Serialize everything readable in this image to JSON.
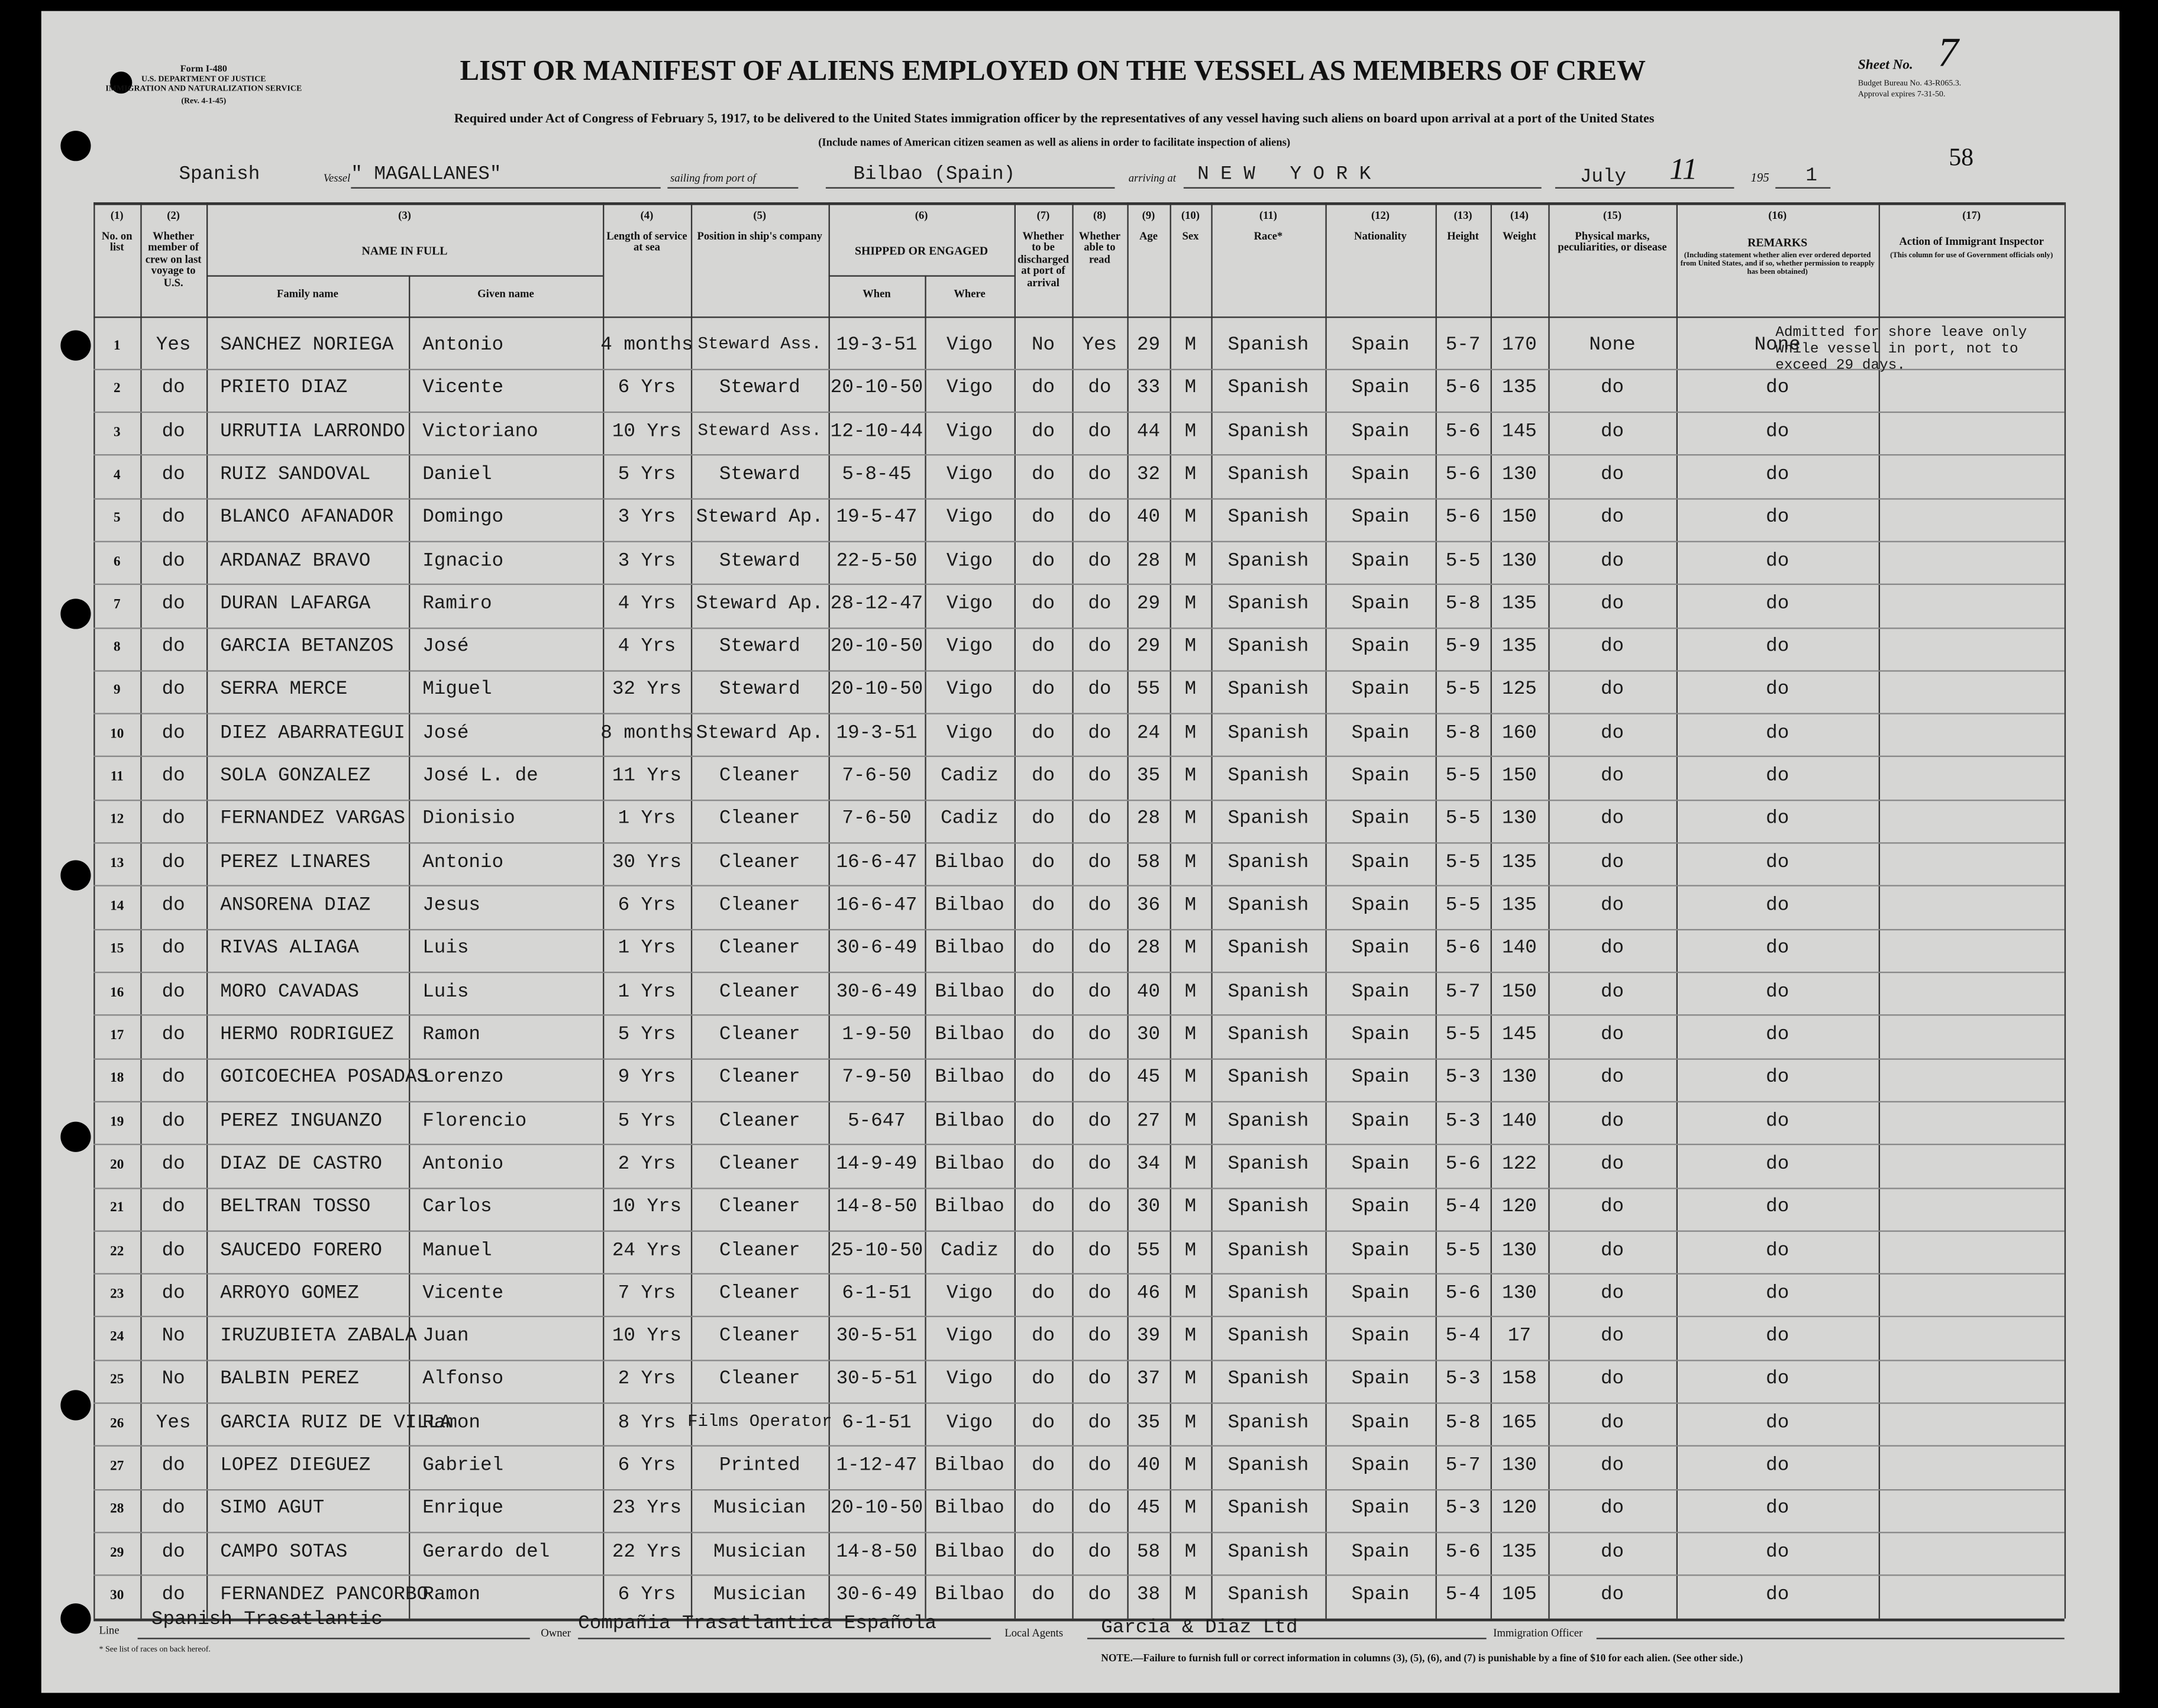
{
  "header": {
    "form_info": [
      "Form I-480",
      "U.S. DEPARTMENT OF JUSTICE",
      "IMMIGRATION AND NATURALIZATION SERVICE",
      "(Rev. 4-1-45)"
    ],
    "title": "LIST OR MANIFEST OF ALIENS EMPLOYED ON THE VESSEL AS MEMBERS OF CREW",
    "sheet_label": "Sheet No.",
    "sheet_number": "7",
    "budget": [
      "Budget Bureau No. 43-R065.3.",
      "Approval expires 7-31-50."
    ],
    "subtitle": "Required under Act of Congress of February 5, 1917, to be delivered to the United States immigration officer by the representatives of any vessel having such aliens on board upon arrival at a port of the United States",
    "note": "(Include names of American citizen seamen as well as aliens in order to facilitate inspection of aliens)",
    "page_number": "58"
  },
  "voyage": {
    "nationality": "Spanish",
    "vessel_label": "Vessel",
    "vessel": "\" MAGALLANES\"",
    "sailing_label": "sailing from port of",
    "port": "Bilbao (Spain)",
    "arriving_label": "arriving at",
    "arrival": "N E W   Y O R K",
    "month": "July",
    "day": "11",
    "year": "195",
    "year_digit": "1"
  },
  "table": {
    "columns": [
      {
        "num": "(1)",
        "label": "No. on list"
      },
      {
        "num": "(2)",
        "label": "Whether member of crew on last voyage to U.S."
      },
      {
        "num": "(3)",
        "label": "NAME IN FULL",
        "subs": [
          "Family name",
          "Given name"
        ]
      },
      {
        "num": "(4)",
        "label": "Length of service at sea"
      },
      {
        "num": "(5)",
        "label": "Position in ship's company"
      },
      {
        "num": "(6)",
        "label": "SHIPPED OR ENGAGED",
        "subs": [
          "When",
          "Where"
        ]
      },
      {
        "num": "(7)",
        "label": "Whether to be discharged at port of arrival"
      },
      {
        "num": "(8)",
        "label": "Whether able to read"
      },
      {
        "num": "(9)",
        "label": "Age"
      },
      {
        "num": "(10)",
        "label": "Sex"
      },
      {
        "num": "(11)",
        "label": "Race*"
      },
      {
        "num": "(12)",
        "label": "Nationality"
      },
      {
        "num": "(13)",
        "label": "Height"
      },
      {
        "num": "(14)",
        "label": "Weight"
      },
      {
        "num": "(15)",
        "label": "Physical marks, peculiarities, or disease"
      },
      {
        "num": "(16)",
        "label": "REMARKS",
        "note": "(Including statement whether alien ever ordered deported from United States, and if so, whether permission to reapply has been obtained)"
      },
      {
        "num": "(17)",
        "label": "Action of Immigrant Inspector",
        "note": "(This column for use of Government officials only)"
      }
    ],
    "rows": [
      [
        "1",
        "Yes",
        "SANCHEZ NORIEGA",
        "Antonio",
        "4 months",
        "Steward Ass.",
        "19-3-51",
        "Vigo",
        "No",
        "Yes",
        "29",
        "M",
        "Spanish",
        "Spain",
        "5-7",
        "170",
        "None",
        "None"
      ],
      [
        "2",
        "do",
        "PRIETO DIAZ",
        "Vicente",
        "6 Yrs",
        "Steward",
        "20-10-50",
        "Vigo",
        "do",
        "do",
        "33",
        "M",
        "Spanish",
        "Spain",
        "5-6",
        "135",
        "do",
        "do"
      ],
      [
        "3",
        "do",
        "URRUTIA LARRONDO",
        "Victoriano",
        "10 Yrs",
        "Steward Ass.",
        "12-10-44",
        "Vigo",
        "do",
        "do",
        "44",
        "M",
        "Spanish",
        "Spain",
        "5-6",
        "145",
        "do",
        "do"
      ],
      [
        "4",
        "do",
        "RUIZ SANDOVAL",
        "Daniel",
        "5 Yrs",
        "Steward",
        "5-8-45",
        "Vigo",
        "do",
        "do",
        "32",
        "M",
        "Spanish",
        "Spain",
        "5-6",
        "130",
        "do",
        "do"
      ],
      [
        "5",
        "do",
        "BLANCO AFANADOR",
        "Domingo",
        "3 Yrs",
        "Steward Ap.",
        "19-5-47",
        "Vigo",
        "do",
        "do",
        "40",
        "M",
        "Spanish",
        "Spain",
        "5-6",
        "150",
        "do",
        "do"
      ],
      [
        "6",
        "do",
        "ARDANAZ BRAVO",
        "Ignacio",
        "3 Yrs",
        "Steward",
        "22-5-50",
        "Vigo",
        "do",
        "do",
        "28",
        "M",
        "Spanish",
        "Spain",
        "5-5",
        "130",
        "do",
        "do"
      ],
      [
        "7",
        "do",
        "DURAN LAFARGA",
        "Ramiro",
        "4 Yrs",
        "Steward Ap.",
        "28-12-47",
        "Vigo",
        "do",
        "do",
        "29",
        "M",
        "Spanish",
        "Spain",
        "5-8",
        "135",
        "do",
        "do"
      ],
      [
        "8",
        "do",
        "GARCIA BETANZOS",
        "José",
        "4 Yrs",
        "Steward",
        "20-10-50",
        "Vigo",
        "do",
        "do",
        "29",
        "M",
        "Spanish",
        "Spain",
        "5-9",
        "135",
        "do",
        "do"
      ],
      [
        "9",
        "do",
        "SERRA MERCE",
        "Miguel",
        "32 Yrs",
        "Steward",
        "20-10-50",
        "Vigo",
        "do",
        "do",
        "55",
        "M",
        "Spanish",
        "Spain",
        "5-5",
        "125",
        "do",
        "do"
      ],
      [
        "10",
        "do",
        "DIEZ ABARRATEGUI",
        "José",
        "8 months",
        "Steward Ap.",
        "19-3-51",
        "Vigo",
        "do",
        "do",
        "24",
        "M",
        "Spanish",
        "Spain",
        "5-8",
        "160",
        "do",
        "do"
      ],
      [
        "11",
        "do",
        "SOLA GONZALEZ",
        "José L. de",
        "11 Yrs",
        "Cleaner",
        "7-6-50",
        "Cadiz",
        "do",
        "do",
        "35",
        "M",
        "Spanish",
        "Spain",
        "5-5",
        "150",
        "do",
        "do"
      ],
      [
        "12",
        "do",
        "FERNANDEZ VARGAS",
        "Dionisio",
        "1 Yrs",
        "Cleaner",
        "7-6-50",
        "Cadiz",
        "do",
        "do",
        "28",
        "M",
        "Spanish",
        "Spain",
        "5-5",
        "130",
        "do",
        "do"
      ],
      [
        "13",
        "do",
        "PEREZ LINARES",
        "Antonio",
        "30 Yrs",
        "Cleaner",
        "16-6-47",
        "Bilbao",
        "do",
        "do",
        "58",
        "M",
        "Spanish",
        "Spain",
        "5-5",
        "135",
        "do",
        "do"
      ],
      [
        "14",
        "do",
        "ANSORENA DIAZ",
        "Jesus",
        "6 Yrs",
        "Cleaner",
        "16-6-47",
        "Bilbao",
        "do",
        "do",
        "36",
        "M",
        "Spanish",
        "Spain",
        "5-5",
        "135",
        "do",
        "do"
      ],
      [
        "15",
        "do",
        "RIVAS ALIAGA",
        "Luis",
        "1 Yrs",
        "Cleaner",
        "30-6-49",
        "Bilbao",
        "do",
        "do",
        "28",
        "M",
        "Spanish",
        "Spain",
        "5-6",
        "140",
        "do",
        "do"
      ],
      [
        "16",
        "do",
        "MORO CAVADAS",
        "Luis",
        "1 Yrs",
        "Cleaner",
        "30-6-49",
        "Bilbao",
        "do",
        "do",
        "40",
        "M",
        "Spanish",
        "Spain",
        "5-7",
        "150",
        "do",
        "do"
      ],
      [
        "17",
        "do",
        "HERMO RODRIGUEZ",
        "Ramon",
        "5 Yrs",
        "Cleaner",
        "1-9-50",
        "Bilbao",
        "do",
        "do",
        "30",
        "M",
        "Spanish",
        "Spain",
        "5-5",
        "145",
        "do",
        "do"
      ],
      [
        "18",
        "do",
        "GOICOECHEA POSADAS",
        "Lorenzo",
        "9 Yrs",
        "Cleaner",
        "7-9-50",
        "Bilbao",
        "do",
        "do",
        "45",
        "M",
        "Spanish",
        "Spain",
        "5-3",
        "130",
        "do",
        "do"
      ],
      [
        "19",
        "do",
        "PEREZ INGUANZO",
        "Florencio",
        "5 Yrs",
        "Cleaner",
        "5-647",
        "Bilbao",
        "do",
        "do",
        "27",
        "M",
        "Spanish",
        "Spain",
        "5-3",
        "140",
        "do",
        "do"
      ],
      [
        "20",
        "do",
        "DIAZ DE CASTRO",
        "Antonio",
        "2 Yrs",
        "Cleaner",
        "14-9-49",
        "Bilbao",
        "do",
        "do",
        "34",
        "M",
        "Spanish",
        "Spain",
        "5-6",
        "122",
        "do",
        "do"
      ],
      [
        "21",
        "do",
        "BELTRAN TOSSO",
        "Carlos",
        "10 Yrs",
        "Cleaner",
        "14-8-50",
        "Bilbao",
        "do",
        "do",
        "30",
        "M",
        "Spanish",
        "Spain",
        "5-4",
        "120",
        "do",
        "do"
      ],
      [
        "22",
        "do",
        "SAUCEDO FORERO",
        "Manuel",
        "24 Yrs",
        "Cleaner",
        "25-10-50",
        "Cadiz",
        "do",
        "do",
        "55",
        "M",
        "Spanish",
        "Spain",
        "5-5",
        "130",
        "do",
        "do"
      ],
      [
        "23",
        "do",
        "ARROYO GOMEZ",
        "Vicente",
        "7 Yrs",
        "Cleaner",
        "6-1-51",
        "Vigo",
        "do",
        "do",
        "46",
        "M",
        "Spanish",
        "Spain",
        "5-6",
        "130",
        "do",
        "do"
      ],
      [
        "24",
        "No",
        "IRUZUBIETA ZABALA",
        "Juan",
        "10 Yrs",
        "Cleaner",
        "30-5-51",
        "Vigo",
        "do",
        "do",
        "39",
        "M",
        "Spanish",
        "Spain",
        "5-4",
        "17",
        "do",
        "do"
      ],
      [
        "25",
        "No",
        "BALBIN PEREZ",
        "Alfonso",
        "2 Yrs",
        "Cleaner",
        "30-5-51",
        "Vigo",
        "do",
        "do",
        "37",
        "M",
        "Spanish",
        "Spain",
        "5-3",
        "158",
        "do",
        "do"
      ],
      [
        "26",
        "Yes",
        "GARCIA RUIZ DE VILLA",
        "Ramon",
        "8 Yrs",
        "Films Operator",
        "6-1-51",
        "Vigo",
        "do",
        "do",
        "35",
        "M",
        "Spanish",
        "Spain",
        "5-8",
        "165",
        "do",
        "do"
      ],
      [
        "27",
        "do",
        "LOPEZ DIEGUEZ",
        "Gabriel",
        "6 Yrs",
        "Printed",
        "1-12-47",
        "Bilbao",
        "do",
        "do",
        "40",
        "M",
        "Spanish",
        "Spain",
        "5-7",
        "130",
        "do",
        "do"
      ],
      [
        "28",
        "do",
        "SIMO AGUT",
        "Enrique",
        "23 Yrs",
        "Musician",
        "20-10-50",
        "Bilbao",
        "do",
        "do",
        "45",
        "M",
        "Spanish",
        "Spain",
        "5-3",
        "120",
        "do",
        "do"
      ],
      [
        "29",
        "do",
        "CAMPO SOTAS",
        "Gerardo del",
        "22 Yrs",
        "Musician",
        "14-8-50",
        "Bilbao",
        "do",
        "do",
        "58",
        "M",
        "Spanish",
        "Spain",
        "5-6",
        "135",
        "do",
        "do"
      ],
      [
        "30",
        "do",
        "FERNANDEZ PANCORBO",
        "Ramon",
        "6 Yrs",
        "Musician",
        "30-6-49",
        "Bilbao",
        "do",
        "do",
        "38",
        "M",
        "Spanish",
        "Spain",
        "5-4",
        "105",
        "do",
        "do"
      ]
    ],
    "remark": "Admitted for shore leave only while vessel in port, not to exceed 29 days."
  },
  "footer": {
    "line_label": "Line",
    "line": "Spanish Trasatlantic",
    "owner_label": "Owner",
    "owner": "Compañia Trasatlantica Española",
    "agents_label": "Local Agents",
    "agents": "Garcia & Diaz Ltd",
    "officer_label": "Immigration Officer",
    "races_note": "* See list of races on back hereof.",
    "note": "NOTE.—Failure to furnish full or correct information in columns (3), (5), (6), and (7) is punishable by a fine of $10 for each alien. (See other side.)"
  }
}
